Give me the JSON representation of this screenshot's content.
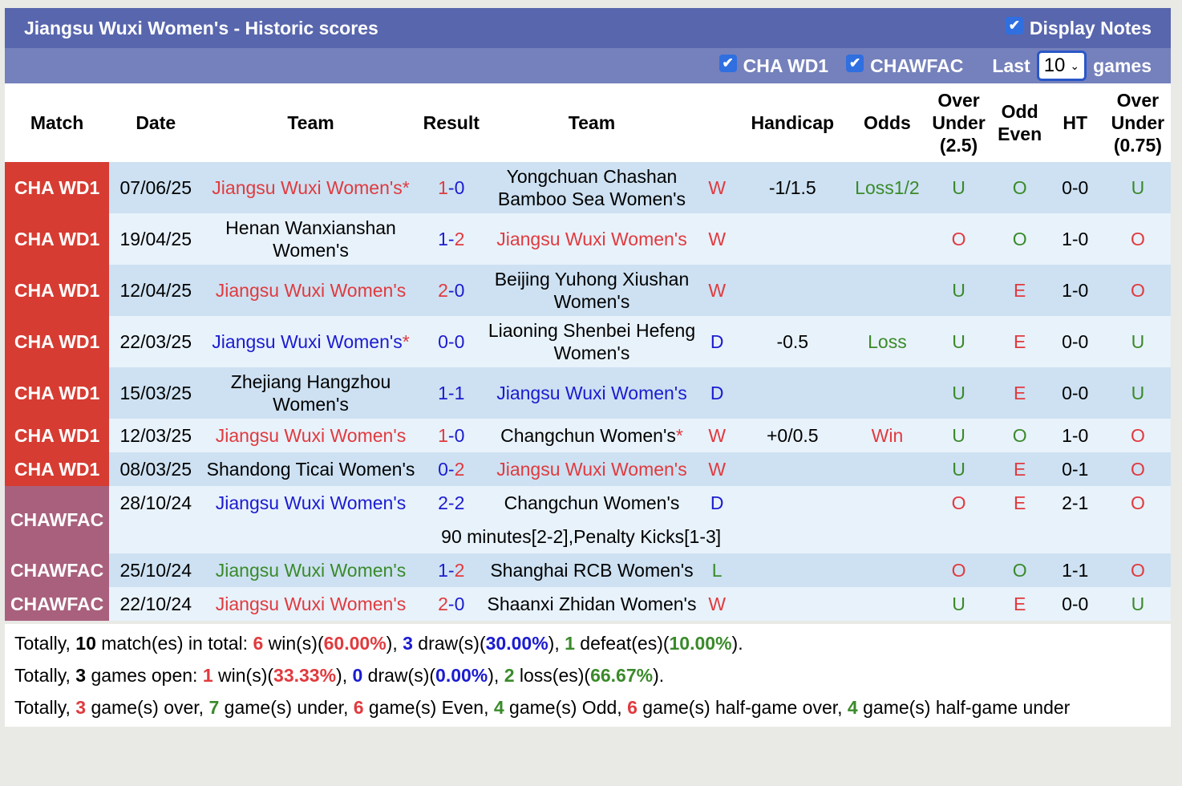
{
  "title": "Jiangsu Wuxi Women's - Historic scores",
  "display_notes": {
    "label": "Display Notes",
    "checked": true
  },
  "filters": [
    {
      "label": "CHA WD1",
      "checked": true
    },
    {
      "label": "CHAWFAC",
      "checked": true
    }
  ],
  "last": {
    "prefix": "Last",
    "value": "10",
    "suffix": "games"
  },
  "headers": [
    "Match",
    "Date",
    "Team",
    "Result",
    "Team",
    "",
    "Handicap",
    "Odds",
    "Over Under (2.5)",
    "Odd Even",
    "HT",
    "Over Under (0.75)"
  ],
  "colors": {
    "win": "#e03a3e",
    "draw": "#1b1bd0",
    "loss": "#3a8a2a",
    "cha_wd1": "#d63c32",
    "chawfac": "#a9607c",
    "title_bar": "#5866ad",
    "sub_bar": "#7581bc"
  },
  "rows": [
    {
      "match": "CHA WD1",
      "date": "07/06/25",
      "home": "Jiangsu Wuxi Women's",
      "home_star": true,
      "home_color": "r",
      "score": "1-0",
      "away": "Yongchuan Chashan Bamboo Sea Women's",
      "away_color": "k",
      "wdl": "W",
      "handicap": "-1/1.5",
      "odds": "Loss1/2",
      "odds_color": "g",
      "ou": "U",
      "oe": "O",
      "ht": "0-0",
      "ou2": "U"
    },
    {
      "match": "CHA WD1",
      "date": "19/04/25",
      "home": "Henan Wanxianshan Women's",
      "home_color": "k",
      "score": "1-2",
      "away": "Jiangsu Wuxi Women's",
      "away_color": "r",
      "wdl": "W",
      "handicap": "",
      "odds": "",
      "ou": "O",
      "oe": "O",
      "ht": "1-0",
      "ou2": "O"
    },
    {
      "match": "CHA WD1",
      "date": "12/04/25",
      "home": "Jiangsu Wuxi Women's",
      "home_color": "r",
      "score": "2-0",
      "away": "Beijing Yuhong Xiushan Women's",
      "away_color": "k",
      "wdl": "W",
      "handicap": "",
      "odds": "",
      "ou": "U",
      "oe": "E",
      "ht": "1-0",
      "ou2": "O"
    },
    {
      "match": "CHA WD1",
      "date": "22/03/25",
      "home": "Jiangsu Wuxi Women's",
      "home_star": true,
      "home_color": "b",
      "score": "0-0",
      "away": "Liaoning Shenbei Hefeng Women's",
      "away_color": "k",
      "wdl": "D",
      "handicap": "-0.5",
      "odds": "Loss",
      "odds_color": "g",
      "ou": "U",
      "oe": "E",
      "ht": "0-0",
      "ou2": "U"
    },
    {
      "match": "CHA WD1",
      "date": "15/03/25",
      "home": "Zhejiang Hangzhou Women's",
      "home_color": "k",
      "score": "1-1",
      "away": "Jiangsu Wuxi Women's",
      "away_color": "b",
      "wdl": "D",
      "handicap": "",
      "odds": "",
      "ou": "U",
      "oe": "E",
      "ht": "0-0",
      "ou2": "U"
    },
    {
      "match": "CHA WD1",
      "date": "12/03/25",
      "home": "Jiangsu Wuxi Women's",
      "home_color": "r",
      "score": "1-0",
      "away": "Changchun Women's",
      "away_star": true,
      "away_color": "k",
      "wdl": "W",
      "handicap": "+0/0.5",
      "odds": "Win",
      "odds_color": "r",
      "ou": "U",
      "oe": "O",
      "ht": "1-0",
      "ou2": "O"
    },
    {
      "match": "CHA WD1",
      "date": "08/03/25",
      "home": "Shandong Ticai Women's",
      "home_color": "k",
      "score": "0-2",
      "away": "Jiangsu Wuxi Women's",
      "away_color": "r",
      "wdl": "W",
      "handicap": "",
      "odds": "",
      "ou": "U",
      "oe": "E",
      "ht": "0-1",
      "ou2": "O"
    },
    {
      "match": "CHAWFAC",
      "date": "28/10/24",
      "home": "Jiangsu Wuxi Women's",
      "home_color": "b",
      "score": "2-2",
      "away": "Changchun Women's",
      "away_color": "k",
      "wdl": "D",
      "handicap": "",
      "odds": "",
      "ou": "O",
      "oe": "E",
      "ht": "2-1",
      "ou2": "O",
      "note": "90 minutes[2-2],Penalty Kicks[1-3]"
    },
    {
      "match": "CHAWFAC",
      "date": "25/10/24",
      "home": "Jiangsu Wuxi Women's",
      "home_color": "g",
      "score": "1-2",
      "away": "Shanghai RCB Women's",
      "away_color": "k",
      "wdl": "L",
      "handicap": "",
      "odds": "",
      "ou": "O",
      "oe": "O",
      "ht": "1-1",
      "ou2": "O"
    },
    {
      "match": "CHAWFAC",
      "date": "22/10/24",
      "home": "Jiangsu Wuxi Women's",
      "home_color": "r",
      "score": "2-0",
      "away": "Shaanxi Zhidan Women's",
      "away_color": "k",
      "wdl": "W",
      "handicap": "",
      "odds": "",
      "ou": "U",
      "oe": "E",
      "ht": "0-0",
      "ou2": "U"
    }
  ],
  "summary": [
    [
      [
        "Totally, ",
        "k"
      ],
      [
        "10",
        "kb"
      ],
      [
        " match(es) in total: ",
        "k"
      ],
      [
        "6",
        "rb"
      ],
      [
        " win(s)(",
        "k"
      ],
      [
        "60.00%",
        "rb"
      ],
      [
        "), ",
        "k"
      ],
      [
        "3",
        "bb"
      ],
      [
        " draw(s)(",
        "k"
      ],
      [
        "30.00%",
        "bb"
      ],
      [
        "), ",
        "k"
      ],
      [
        "1",
        "gb"
      ],
      [
        " defeat(es)(",
        "k"
      ],
      [
        "10.00%",
        "gb"
      ],
      [
        ").",
        "k"
      ]
    ],
    [
      [
        "Totally, ",
        "k"
      ],
      [
        "3",
        "kb"
      ],
      [
        " games open: ",
        "k"
      ],
      [
        "1",
        "rb"
      ],
      [
        " win(s)(",
        "k"
      ],
      [
        "33.33%",
        "rb"
      ],
      [
        "), ",
        "k"
      ],
      [
        "0",
        "bb"
      ],
      [
        " draw(s)(",
        "k"
      ],
      [
        "0.00%",
        "bb"
      ],
      [
        "), ",
        "k"
      ],
      [
        "2",
        "gb"
      ],
      [
        " loss(es)(",
        "k"
      ],
      [
        "66.67%",
        "gb"
      ],
      [
        ").",
        "k"
      ]
    ],
    [
      [
        "Totally, ",
        "k"
      ],
      [
        "3",
        "rb"
      ],
      [
        " game(s) over, ",
        "k"
      ],
      [
        "7",
        "gb"
      ],
      [
        " game(s) under, ",
        "k"
      ],
      [
        "6",
        "rb"
      ],
      [
        " game(s) Even, ",
        "k"
      ],
      [
        "4",
        "gb"
      ],
      [
        " game(s) Odd, ",
        "k"
      ],
      [
        "6",
        "rb"
      ],
      [
        " game(s) half-game over, ",
        "k"
      ],
      [
        "4",
        "gb"
      ],
      [
        " game(s) half-game under",
        "k"
      ]
    ]
  ]
}
